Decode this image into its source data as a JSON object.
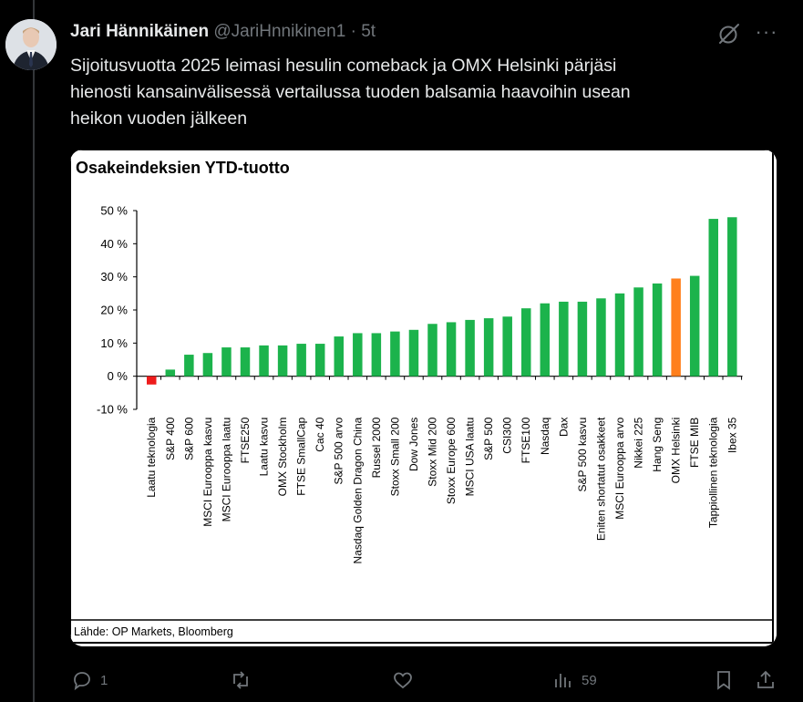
{
  "tweet": {
    "author_name": "Jari Hännikäinen",
    "handle": "@JariHnnikinen1",
    "separator": "·",
    "time": "5t",
    "text_lines": [
      "Sijoitusvuotta 2025 leimasi hesulin comeback ja OMX Helsinki pärjäsi",
      "hienosti kansainvälisessä vertailussa  tuoden balsamia haavoihin usean",
      "heikon vuoden jälkeen"
    ],
    "more_label": "···"
  },
  "actions": {
    "reply_count": "1",
    "repost_count": "",
    "like_count": "",
    "views_count": "59",
    "icons": [
      "reply-icon",
      "repost-icon",
      "like-icon",
      "views-icon",
      "bookmark-icon",
      "share-icon"
    ]
  },
  "chart_data": {
    "type": "bar",
    "title": "Osakeindeksien YTD-tuotto",
    "source": "Lähde: OP Markets, Bloomberg",
    "ylim": [
      -10,
      50
    ],
    "yticks": [
      50,
      40,
      30,
      20,
      10,
      0,
      -10
    ],
    "ytick_labels": [
      "50 %",
      "40 %",
      "30 %",
      "20 %",
      "10 %",
      "0 %",
      "-10 %"
    ],
    "grid": false,
    "categories": [
      "Laatu teknologia",
      "S&P 400",
      "S&P 600",
      "MSCI Eurooppa kasvu",
      "MSCI Eurooppa laatu",
      "FTSE250",
      "Laatu kasvu",
      "OMX Stockholm",
      "FTSE SmallCap",
      "Cac 40",
      "S&P 500 arvo",
      "Nasdaq Golden Dragon China",
      "Russel 2000",
      "Stoxx Small 200",
      "Dow Jones",
      "Stoxx Mid 200",
      "Stoxx Europe 600",
      "MSCI USA laatu",
      "S&P 500",
      "CSI300",
      "FTSE100",
      "Nasdaq",
      "Dax",
      "S&P 500 kasvu",
      "Eniten shortatut osakkeet",
      "MSCI Eurooppa arvo",
      "Nikkei 225",
      "Hang Seng",
      "OMX Helsinki",
      "FTSE MIB",
      "Tappiollinen teknologia",
      "Ibex 35"
    ],
    "values": [
      -2.5,
      2,
      6.5,
      7,
      8.7,
      8.7,
      9.3,
      9.3,
      9.8,
      9.8,
      12,
      13,
      13,
      13.5,
      14,
      15.8,
      16.3,
      17,
      17.5,
      18,
      20.5,
      22,
      22.5,
      22.5,
      23.5,
      25,
      26.8,
      28,
      29.5,
      30.3,
      47.5,
      48
    ],
    "colors": {
      "default": "#1cb34c",
      "negative": "#ee1c1c",
      "highlight": "#ff7f1c"
    },
    "highlight_category": "OMX Helsinki"
  }
}
